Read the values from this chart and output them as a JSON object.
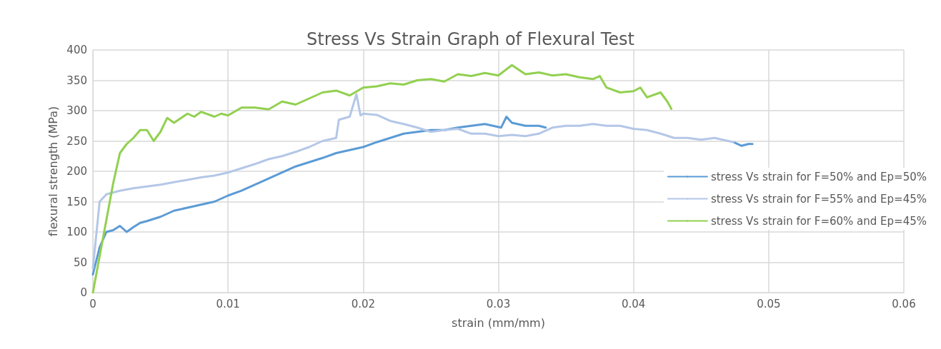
{
  "chart_data": {
    "type": "line",
    "title": "Stress Vs Strain Graph of Flexural Test",
    "xlabel": "strain (mm/mm)",
    "ylabel": "flexural strength (MPa)",
    "xlim": [
      0,
      0.06
    ],
    "xticks": [
      0,
      0.01,
      0.02,
      0.03,
      0.04,
      0.05,
      0.06
    ],
    "ylim": [
      0,
      400
    ],
    "yticks": [
      0,
      50,
      100,
      150,
      200,
      250,
      300,
      350,
      400
    ],
    "grid": true,
    "legend": "right",
    "marker": "none",
    "line_style": "solid",
    "series": [
      {
        "name": "stress Vs strain for F=50% and Ep=50%",
        "color": "#5b9bd5",
        "x": [
          0,
          0.0005,
          0.001,
          0.0015,
          0.002,
          0.0025,
          0.003,
          0.0035,
          0.004,
          0.005,
          0.006,
          0.007,
          0.008,
          0.009,
          0.01,
          0.011,
          0.012,
          0.013,
          0.014,
          0.015,
          0.016,
          0.017,
          0.018,
          0.019,
          0.02,
          0.021,
          0.022,
          0.023,
          0.024,
          0.025,
          0.026,
          0.027,
          0.028,
          0.029,
          0.0302,
          0.0306,
          0.031,
          0.032,
          0.033,
          0.0335,
          0.04,
          0.0474,
          0.048,
          0.0485,
          0.0488
        ],
        "values": [
          30,
          75,
          100,
          103,
          110,
          100,
          108,
          115,
          118,
          125,
          135,
          140,
          145,
          150,
          160,
          168,
          178,
          188,
          198,
          208,
          215,
          222,
          230,
          235,
          240,
          248,
          255,
          262,
          265,
          268,
          268,
          272,
          275,
          278,
          272,
          290,
          280,
          275,
          275,
          272,
          null,
          248,
          242,
          245,
          245
        ]
      },
      {
        "name": "stress Vs strain for F=55% and Ep=45%",
        "color": "#b4c7e7",
        "x": [
          0,
          0.0005,
          0.001,
          0.002,
          0.003,
          0.004,
          0.005,
          0.006,
          0.007,
          0.008,
          0.009,
          0.01,
          0.011,
          0.012,
          0.013,
          0.014,
          0.015,
          0.016,
          0.017,
          0.018,
          0.0182,
          0.019,
          0.0195,
          0.0198,
          0.02,
          0.021,
          0.022,
          0.023,
          0.024,
          0.025,
          0.026,
          0.027,
          0.028,
          0.029,
          0.03,
          0.031,
          0.032,
          0.033,
          0.034,
          0.035,
          0.036,
          0.037,
          0.038,
          0.039,
          0.04,
          0.041,
          0.042,
          0.043,
          0.044,
          0.045,
          0.046,
          0.047,
          0.0474
        ],
        "values": [
          40,
          150,
          162,
          168,
          172,
          175,
          178,
          182,
          186,
          190,
          193,
          198,
          205,
          212,
          220,
          225,
          232,
          240,
          250,
          255,
          285,
          290,
          327,
          292,
          295,
          293,
          283,
          278,
          272,
          265,
          268,
          270,
          262,
          262,
          258,
          260,
          258,
          262,
          272,
          275,
          275,
          278,
          275,
          275,
          270,
          268,
          262,
          255,
          255,
          252,
          255,
          250,
          248
        ]
      },
      {
        "name": "stress Vs strain for F=60% and Ep=45%",
        "color": "#92d050",
        "x": [
          0,
          0.0005,
          0.001,
          0.0015,
          0.002,
          0.0025,
          0.003,
          0.0035,
          0.004,
          0.0045,
          0.005,
          0.0055,
          0.006,
          0.007,
          0.0075,
          0.008,
          0.009,
          0.0095,
          0.01,
          0.011,
          0.012,
          0.013,
          0.014,
          0.015,
          0.016,
          0.017,
          0.018,
          0.019,
          0.02,
          0.021,
          0.022,
          0.023,
          0.024,
          0.025,
          0.026,
          0.027,
          0.028,
          0.029,
          0.03,
          0.031,
          0.032,
          0.033,
          0.034,
          0.035,
          0.036,
          0.037,
          0.0375,
          0.038,
          0.039,
          0.04,
          0.0405,
          0.041,
          0.042,
          0.0425,
          0.0428
        ],
        "values": [
          0,
          60,
          120,
          180,
          230,
          245,
          255,
          268,
          268,
          250,
          265,
          288,
          280,
          295,
          290,
          298,
          290,
          295,
          292,
          305,
          305,
          302,
          315,
          310,
          320,
          330,
          333,
          325,
          338,
          340,
          345,
          343,
          350,
          352,
          348,
          360,
          357,
          362,
          358,
          375,
          360,
          363,
          358,
          360,
          355,
          352,
          357,
          338,
          330,
          332,
          338,
          322,
          330,
          315,
          303
        ]
      }
    ]
  }
}
